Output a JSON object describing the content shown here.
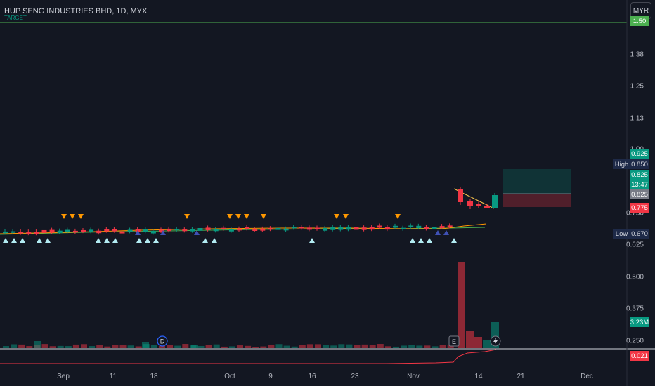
{
  "header": {
    "title": "HUP SENG INDUSTRIES BHD, 1D, MYX",
    "target_label": "TARGET"
  },
  "currency_button": "MYR",
  "price_axis": {
    "ticks": [
      "1.50",
      "1.38",
      "1.25",
      "1.13",
      "1.00",
      "0.750",
      "0.625",
      "0.500",
      "0.375",
      "0.250"
    ],
    "target_badge": "1.50",
    "target_badge_color": "#4caf50",
    "tp_badge": "0.925",
    "high_label": "High",
    "high_value": "0.850",
    "last_price": "0.825",
    "countdown": "13:47",
    "entry_badge": "0.825",
    "stop_badge": "0.775",
    "low_label": "Low",
    "low_value": "0.670",
    "volume_badge": "3.23M",
    "indicator_badge": "0.021"
  },
  "time_axis": {
    "labels": [
      "Sep",
      "11",
      "18",
      "Oct",
      "9",
      "16",
      "23",
      "Nov",
      "14",
      "21",
      "Dec"
    ]
  },
  "markers": {
    "dividend": "D",
    "earnings": "E"
  },
  "colors": {
    "background": "#131722",
    "up": "#089981",
    "down": "#f23645",
    "target_line": "#4caf50",
    "ma_orange": "#ff9800",
    "ma_green": "#4caf50",
    "signal_up_light": "#b2ebf2",
    "signal_up_blue": "#3f51b5",
    "signal_down": "#ff9800"
  }
}
